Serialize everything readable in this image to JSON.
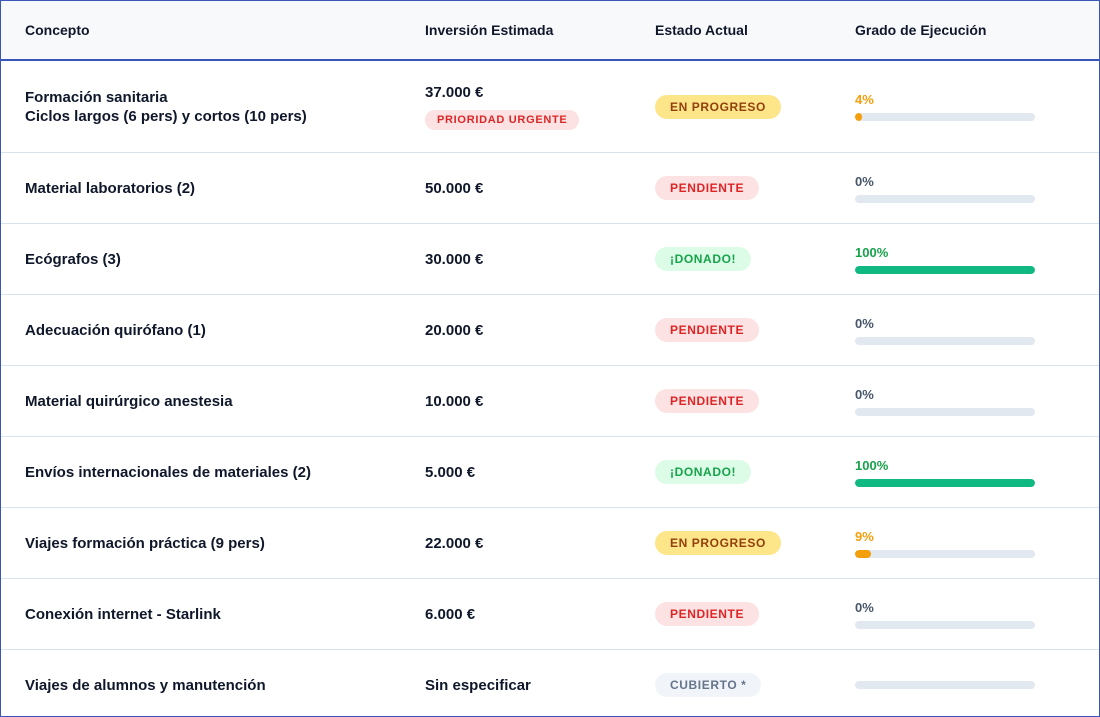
{
  "header": {
    "concept": "Concepto",
    "investment": "Inversión Estimada",
    "status": "Estado Actual",
    "progress": "Grado de Ejecución"
  },
  "rows": [
    {
      "concept": "Formación sanitaria",
      "concept_line2": "Ciclos largos (6 pers) y cortos (10 pers)",
      "amount": "37.000 €",
      "tag": "PRIORIDAD URGENTE",
      "status": "EN PROGRESO",
      "status_kind": "progress",
      "percent_label": "4%",
      "percent": 4
    },
    {
      "concept": "Material laboratorios (2)",
      "amount": "50.000 €",
      "status": "PENDIENTE",
      "status_kind": "pending",
      "percent_label": "0%",
      "percent": 0
    },
    {
      "concept": "Ecógrafos (3)",
      "amount": "30.000 €",
      "status": "¡DONADO!",
      "status_kind": "donated",
      "percent_label": "100%",
      "percent": 100
    },
    {
      "concept": "Adecuación quirófano (1)",
      "amount": "20.000 €",
      "status": "PENDIENTE",
      "status_kind": "pending",
      "percent_label": "0%",
      "percent": 0
    },
    {
      "concept": "Material quirúrgico anestesia",
      "amount": "10.000 €",
      "status": "PENDIENTE",
      "status_kind": "pending",
      "percent_label": "0%",
      "percent": 0
    },
    {
      "concept": "Envíos internacionales de materiales (2)",
      "amount": "5.000 €",
      "status": "¡DONADO!",
      "status_kind": "donated",
      "percent_label": "100%",
      "percent": 100
    },
    {
      "concept": "Viajes formación práctica (9 pers)",
      "amount": "22.000 €",
      "status": "EN PROGRESO",
      "status_kind": "progress",
      "percent_label": "9%",
      "percent": 9
    },
    {
      "concept": "Conexión internet - Starlink",
      "amount": "6.000 €",
      "status": "PENDIENTE",
      "status_kind": "pending",
      "percent_label": "0%",
      "percent": 0
    },
    {
      "concept": "Viajes de alumnos y manutención",
      "amount": "Sin especificar",
      "status": "CUBIERTO *",
      "status_kind": "covered",
      "percent_label": "",
      "percent": 0
    }
  ],
  "colors": {
    "border": "#3a56b8",
    "progress_orange": "#f59e0b",
    "done_green": "#10b981",
    "pending_red": "#dc2626"
  }
}
